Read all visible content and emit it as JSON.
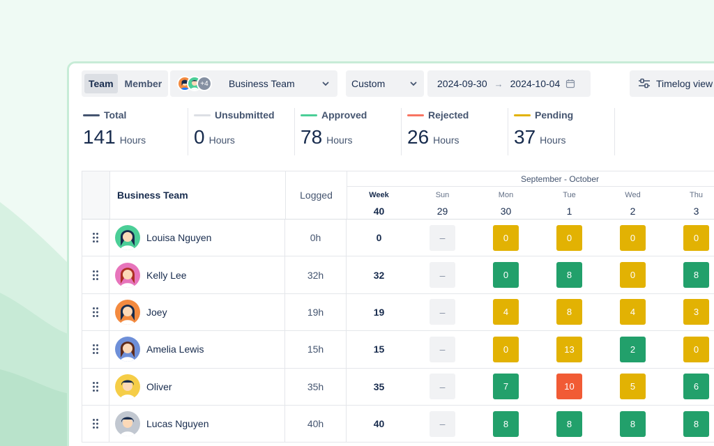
{
  "colors": {
    "total": "#44546f",
    "unsubmitted": "#dcdfe4",
    "approved": "#4bce97",
    "rejected": "#f87462",
    "pending": "#e2b203"
  },
  "toolbar": {
    "segments": [
      {
        "label": "Team",
        "active": true
      },
      {
        "label": "Member",
        "active": false
      }
    ],
    "team_more": "+4",
    "team_select": "Business Team",
    "range_select": "Custom",
    "date_from": "2024-09-30",
    "date_to": "2024-10-04",
    "view_button": "Timelog view"
  },
  "stats": [
    {
      "label": "Total",
      "value": "141",
      "unit": "Hours",
      "color": "#44546f"
    },
    {
      "label": "Unsubmitted",
      "value": "0",
      "unit": "Hours",
      "color": "#dcdfe4"
    },
    {
      "label": "Approved",
      "value": "78",
      "unit": "Hours",
      "color": "#4bce97"
    },
    {
      "label": "Rejected",
      "value": "26",
      "unit": "Hours",
      "color": "#f87462"
    },
    {
      "label": "Pending",
      "value": "37",
      "unit": "Hours",
      "color": "#e2b203"
    }
  ],
  "table": {
    "team_header": "Business Team",
    "logged_header": "Logged",
    "range_header": "September - October",
    "days": [
      {
        "name": "Week",
        "date": "40",
        "week": true
      },
      {
        "name": "Sun",
        "date": "29"
      },
      {
        "name": "Mon",
        "date": "30"
      },
      {
        "name": "Tue",
        "date": "1"
      },
      {
        "name": "Wed",
        "date": "2"
      },
      {
        "name": "Thu",
        "date": "3"
      }
    ],
    "rows": [
      {
        "name": "Louisa Nguyen",
        "logged": "0h",
        "week": "0",
        "avatar_bg": "#4bce97",
        "hair": "#172b4d",
        "cells": [
          {
            "v": "–",
            "s": "none"
          },
          {
            "v": "0",
            "s": "pending"
          },
          {
            "v": "0",
            "s": "pending"
          },
          {
            "v": "0",
            "s": "pending"
          },
          {
            "v": "0",
            "s": "pending"
          }
        ]
      },
      {
        "name": "Kelly Lee",
        "logged": "32h",
        "week": "32",
        "avatar_bg": "#e774bb",
        "hair": "#ae2e24",
        "cells": [
          {
            "v": "–",
            "s": "none"
          },
          {
            "v": "0",
            "s": "approved"
          },
          {
            "v": "8",
            "s": "approved"
          },
          {
            "v": "0",
            "s": "pending"
          },
          {
            "v": "8",
            "s": "approved"
          }
        ]
      },
      {
        "name": "Joey",
        "logged": "19h",
        "week": "19",
        "avatar_bg": "#f38a3f",
        "hair": "#172b4d",
        "cells": [
          {
            "v": "–",
            "s": "none"
          },
          {
            "v": "4",
            "s": "pending"
          },
          {
            "v": "8",
            "s": "pending"
          },
          {
            "v": "4",
            "s": "pending"
          },
          {
            "v": "3",
            "s": "pending"
          }
        ]
      },
      {
        "name": "Amelia Lewis",
        "logged": "15h",
        "week": "15",
        "avatar_bg": "#6e8fd8",
        "hair": "#5e2a1a",
        "cells": [
          {
            "v": "–",
            "s": "none"
          },
          {
            "v": "0",
            "s": "pending"
          },
          {
            "v": "13",
            "s": "pending"
          },
          {
            "v": "2",
            "s": "approved"
          },
          {
            "v": "0",
            "s": "pending"
          }
        ]
      },
      {
        "name": "Oliver",
        "logged": "35h",
        "week": "35",
        "avatar_bg": "#f5cd47",
        "hair": "#172b4d",
        "cells": [
          {
            "v": "–",
            "s": "none"
          },
          {
            "v": "7",
            "s": "approved"
          },
          {
            "v": "10",
            "s": "rejected"
          },
          {
            "v": "5",
            "s": "pending"
          },
          {
            "v": "6",
            "s": "approved"
          }
        ]
      },
      {
        "name": "Lucas Nguyen",
        "logged": "40h",
        "week": "40",
        "avatar_bg": "#c1c7d0",
        "hair": "#172b4d",
        "cells": [
          {
            "v": "–",
            "s": "none"
          },
          {
            "v": "8",
            "s": "approved"
          },
          {
            "v": "8",
            "s": "approved"
          },
          {
            "v": "8",
            "s": "approved"
          },
          {
            "v": "8",
            "s": "approved"
          }
        ]
      }
    ]
  }
}
